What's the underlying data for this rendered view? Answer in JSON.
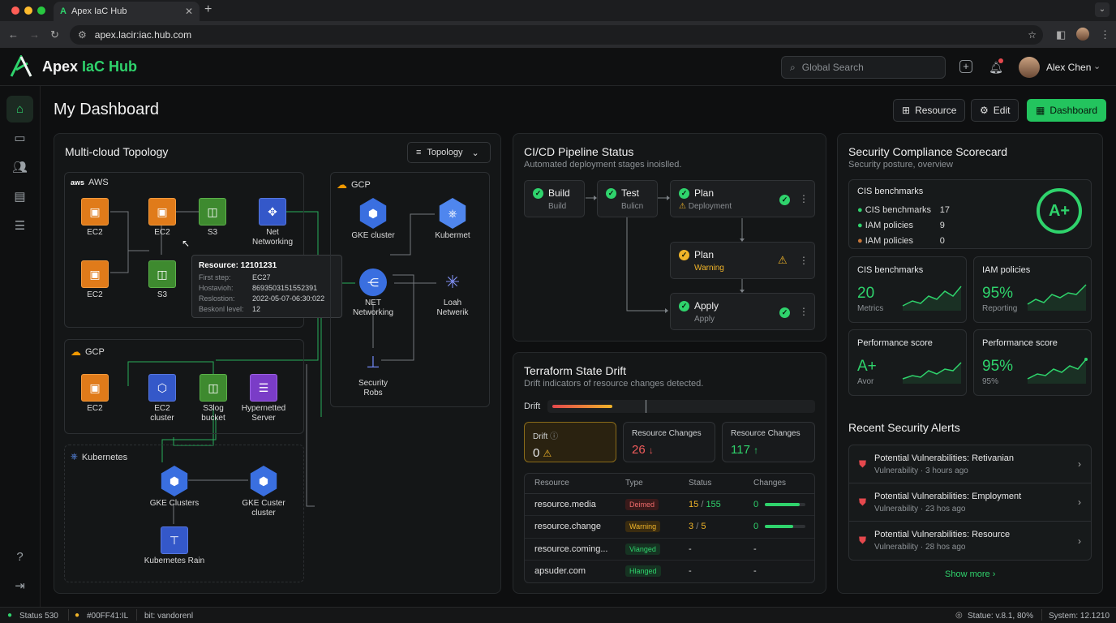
{
  "browser": {
    "tab_title": "Apex IaC Hub",
    "url": "apex.lacir:iac.hub.com"
  },
  "header": {
    "brand_a": "Apex",
    "brand_b": "IaC Hub",
    "search_placeholder": "Global Search",
    "user_name": "Alex Chen"
  },
  "page": {
    "title": "My Dashboard",
    "btn_resource": "Resource",
    "btn_edit": "Edit",
    "btn_dashboard": "Dashboard"
  },
  "topology": {
    "title": "Multi-cloud Topology",
    "view_select": "Topology",
    "aws_label": "AWS",
    "aws_nodes": [
      "EC2",
      "EC2",
      "S3",
      "Net Networking",
      "EC2",
      "S3"
    ],
    "gcp_left_label": "GCP",
    "gcp_left_nodes": [
      "EC2",
      "EC2 cluster",
      "S3log bucket",
      "Hypernetted Server"
    ],
    "k8s_label": "Kubernetes",
    "k8s_nodes": [
      "GKE Clusters",
      "GKE Custer cluster",
      "Kubernetes Rain"
    ],
    "gcp_right_label": "GCP",
    "gcp_right_nodes": [
      "GKE cluster",
      "Kubermet",
      "NET Networking",
      "Loah Netwerik",
      "Security Robs"
    ],
    "tooltip": {
      "title": "Resource: 12101231",
      "rows": [
        {
          "k": "First step:",
          "v": "EC27"
        },
        {
          "k": "Hostavioh:",
          "v": "8693503151552391"
        },
        {
          "k": "Reslostion:",
          "v": "2022-05-07-06:30:022"
        },
        {
          "k": "Beskonl level:",
          "v": "12"
        }
      ]
    }
  },
  "pipeline": {
    "title": "CI/CD Pipeline Status",
    "subtitle": "Automated deployment stages inoislled.",
    "stages": [
      {
        "name": "Build",
        "sub": "Build"
      },
      {
        "name": "Test",
        "sub": "Bulicn"
      },
      {
        "name": "Plan",
        "sub": "Deployment"
      },
      {
        "name": "Plan",
        "sub": "Warning"
      },
      {
        "name": "Apply",
        "sub": "Apply"
      }
    ]
  },
  "drift": {
    "title": "Terraform State Drift",
    "subtitle": "Drift indicators of resource changes detected.",
    "bar_label": "Drift",
    "cards": [
      {
        "label": "Drift",
        "value": "0"
      },
      {
        "label": "Resource Changes",
        "value": "26"
      },
      {
        "label": "Resource Changes",
        "value": "117"
      }
    ],
    "columns": [
      "Resource",
      "Type",
      "Status",
      "Changes"
    ],
    "rows": [
      {
        "resource": "resource.media",
        "type": "Deimed",
        "status_a": "15",
        "status_b": "155",
        "changes": "0",
        "progress": 0.85
      },
      {
        "resource": "resource.change",
        "type": "Warning",
        "status_a": "3",
        "status_b": "5",
        "changes": "0",
        "progress": 0.7
      },
      {
        "resource": "resource.coming...",
        "type": "Vianged",
        "status": "-",
        "changes": "-"
      },
      {
        "resource": "apsuder.com",
        "type": "Hlanged",
        "status": "-",
        "changes": "-"
      }
    ]
  },
  "security": {
    "title": "Security Compliance Scorecard",
    "subtitle": "Security posture, overview",
    "bench": {
      "title": "CIS benchmarks",
      "items": [
        {
          "label": "CIS benchmarks",
          "value": "17"
        },
        {
          "label": "IAM policies",
          "value": "9"
        },
        {
          "label": "IAM policies",
          "value": "0"
        }
      ],
      "grade": "A+"
    },
    "metrics": [
      {
        "title": "CIS benchmarks",
        "value": "20",
        "sub": "Metrics"
      },
      {
        "title": "IAM policies",
        "value": "95%",
        "sub": "Reporting"
      },
      {
        "title": "Performance score",
        "value": "A+",
        "sub": "Avor"
      },
      {
        "title": "Performance score",
        "value": "95%",
        "sub": "95%"
      }
    ],
    "alerts_title": "Recent Security Alerts",
    "alerts": [
      {
        "title": "Potential Vulnerabilities: Retivanian",
        "meta": "Vulnerability · 3 hours ago"
      },
      {
        "title": "Potential Vulnerabilities: Employment",
        "meta": "Vulnerability · 23 hos ago"
      },
      {
        "title": "Potential Vulnerabilities: Resource",
        "meta": "Vulnerability · 28 hos ago"
      }
    ],
    "show_more": "Show more"
  },
  "statusbar": {
    "status": "Status 530",
    "hash": "#00FF41:IL",
    "branch": "bit: vandorenl",
    "right_a": "Statue: v.8.1, 80%",
    "right_b": "System: 12.1210"
  },
  "colors": {
    "accent": "#2fd36c",
    "warning": "#f0b429",
    "danger": "#e5484d"
  }
}
